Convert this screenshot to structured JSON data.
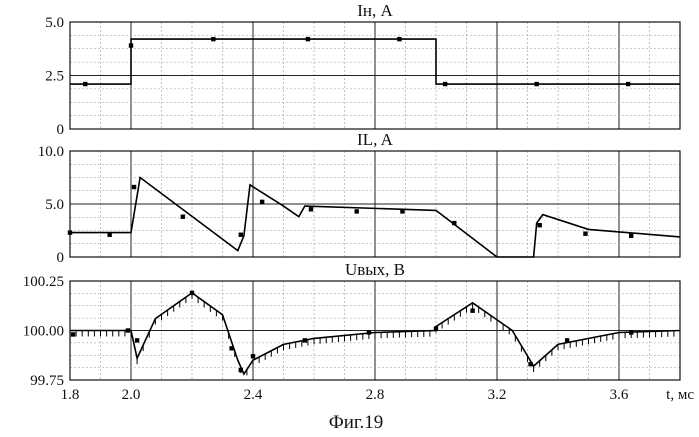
{
  "figure_caption": "Фиг.19",
  "x_axis": {
    "label": "t, мс",
    "range": [
      1.8,
      3.8
    ],
    "ticks": [
      "1.8",
      "2.0",
      "2.4",
      "2.8",
      "3.2",
      "3.6"
    ],
    "tick_values": [
      1.8,
      2.0,
      2.4,
      2.8,
      3.2,
      3.6
    ]
  },
  "chart_data": [
    {
      "type": "line",
      "title": "Iн, A",
      "ylabel": "",
      "xlim": [
        1.8,
        3.8
      ],
      "ylim": [
        0,
        5.0
      ],
      "yticks": [
        "5.0",
        "2.5",
        "0"
      ],
      "ytick_values": [
        5.0,
        2.5,
        0
      ],
      "grid": true,
      "series": [
        {
          "style": "line",
          "x": [
            1.8,
            2.0,
            2.0,
            3.0,
            3.0,
            3.8
          ],
          "y": [
            2.1,
            2.1,
            4.2,
            4.2,
            2.1,
            2.1
          ]
        },
        {
          "style": "markers",
          "x": [
            1.85,
            2.0,
            2.27,
            2.58,
            2.88,
            3.03,
            3.33,
            3.63
          ],
          "y": [
            2.1,
            3.9,
            4.2,
            4.2,
            4.2,
            2.1,
            2.1,
            2.1
          ]
        }
      ]
    },
    {
      "type": "line",
      "title": "IL, A",
      "ylabel": "",
      "xlim": [
        1.8,
        3.8
      ],
      "ylim": [
        0,
        10.0
      ],
      "yticks": [
        "10.0",
        "5.0",
        "0"
      ],
      "ytick_values": [
        10.0,
        5.0,
        0
      ],
      "grid": true,
      "series": [
        {
          "style": "line",
          "x": [
            1.8,
            2.0,
            2.03,
            2.35,
            2.37,
            2.39,
            2.5,
            2.55,
            2.57,
            3.0,
            3.2,
            3.32,
            3.33,
            3.35,
            3.5,
            3.8
          ],
          "y": [
            2.3,
            2.3,
            7.5,
            0.6,
            2.0,
            6.8,
            4.8,
            3.8,
            4.8,
            4.4,
            0,
            0,
            3.2,
            4.0,
            2.6,
            1.9
          ]
        },
        {
          "style": "markers",
          "x": [
            1.8,
            1.93,
            2.01,
            2.17,
            2.36,
            2.43,
            2.59,
            2.74,
            2.89,
            3.06,
            3.34,
            3.49,
            3.64
          ],
          "y": [
            2.3,
            2.1,
            6.6,
            3.8,
            2.1,
            5.2,
            4.5,
            4.3,
            4.3,
            3.2,
            3.0,
            2.2,
            2.0
          ]
        }
      ]
    },
    {
      "type": "line",
      "title": "Uвых, B",
      "ylabel": "",
      "xlim": [
        1.8,
        3.8
      ],
      "ylim": [
        99.75,
        100.25
      ],
      "yticks": [
        "100.25",
        "100.00",
        "99.75"
      ],
      "ytick_values": [
        100.25,
        100.0,
        99.75
      ],
      "grid": true,
      "series": [
        {
          "style": "line",
          "x": [
            1.8,
            2.0,
            2.02,
            2.08,
            2.2,
            2.3,
            2.35,
            2.37,
            2.4,
            2.5,
            2.6,
            2.8,
            3.0,
            3.0,
            3.12,
            3.25,
            3.32,
            3.4,
            3.6,
            3.8
          ],
          "y": [
            100.0,
            100.0,
            99.86,
            100.06,
            100.19,
            100.08,
            99.85,
            99.78,
            99.85,
            99.93,
            99.96,
            99.99,
            100.0,
            100.02,
            100.14,
            100.0,
            99.82,
            99.93,
            99.99,
            100.0
          ],
          "ripple_band": 0.03
        },
        {
          "style": "markers",
          "x": [
            1.81,
            1.99,
            2.02,
            2.2,
            2.33,
            2.36,
            2.4,
            2.57,
            2.78,
            3.0,
            3.12,
            3.31,
            3.43,
            3.64
          ],
          "y": [
            99.98,
            100.0,
            99.95,
            100.19,
            99.91,
            99.8,
            99.87,
            99.95,
            99.99,
            100.01,
            100.1,
            99.83,
            99.95,
            99.99
          ]
        }
      ]
    }
  ]
}
